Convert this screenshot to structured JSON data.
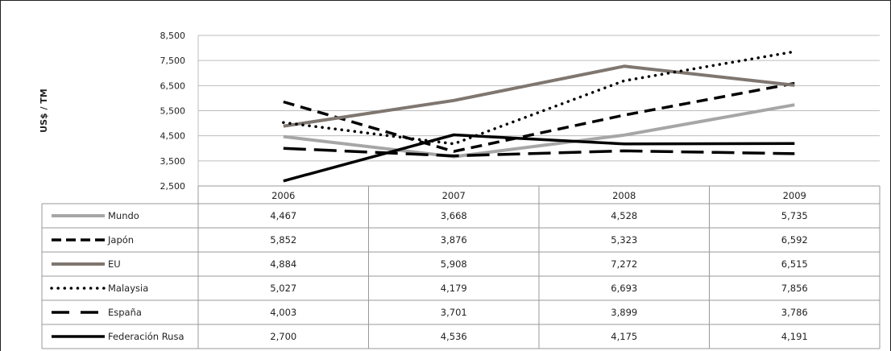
{
  "chart_data": {
    "type": "line",
    "title": "",
    "ylabel": "US$ / TM",
    "ylim": [
      2500,
      8500
    ],
    "yticks": [
      "2,500",
      "3,500",
      "4,500",
      "5,500",
      "6,500",
      "7,500",
      "8,500"
    ],
    "ytick_values": [
      2500,
      3500,
      4500,
      5500,
      6500,
      7500,
      8500
    ],
    "categories": [
      "2006",
      "2007",
      "2008",
      "2009"
    ],
    "grid": true,
    "legend": "data-table-below",
    "series": [
      {
        "name": "Mundo",
        "values": [
          4467,
          3668,
          4528,
          5735
        ],
        "labels": [
          "4,467",
          "3,668",
          "4,528",
          "5,735"
        ],
        "color": "#a6a6a6",
        "style": "solid"
      },
      {
        "name": "Japón",
        "values": [
          5852,
          3876,
          5323,
          6592
        ],
        "labels": [
          "5,852",
          "3,876",
          "5,323",
          "6,592"
        ],
        "color": "#000000",
        "style": "dashed"
      },
      {
        "name": "EU",
        "values": [
          4884,
          5908,
          7272,
          6515
        ],
        "labels": [
          "4,884",
          "5,908",
          "7,272",
          "6,515"
        ],
        "color": "#7f7670",
        "style": "solid"
      },
      {
        "name": "Malaysia",
        "values": [
          5027,
          4179,
          6693,
          7856
        ],
        "labels": [
          "5,027",
          "4,179",
          "6,693",
          "7,856"
        ],
        "color": "#000000",
        "style": "dotted"
      },
      {
        "name": "España",
        "values": [
          4003,
          3701,
          3899,
          3786
        ],
        "labels": [
          "4,003",
          "3,701",
          "3,899",
          "3,786"
        ],
        "color": "#000000",
        "style": "longdash"
      },
      {
        "name": "Federación Rusa",
        "values": [
          2700,
          4536,
          4175,
          4191
        ],
        "labels": [
          "2,700",
          "4,536",
          "4,175",
          "4,191"
        ],
        "color": "#000000",
        "style": "solid"
      }
    ]
  }
}
